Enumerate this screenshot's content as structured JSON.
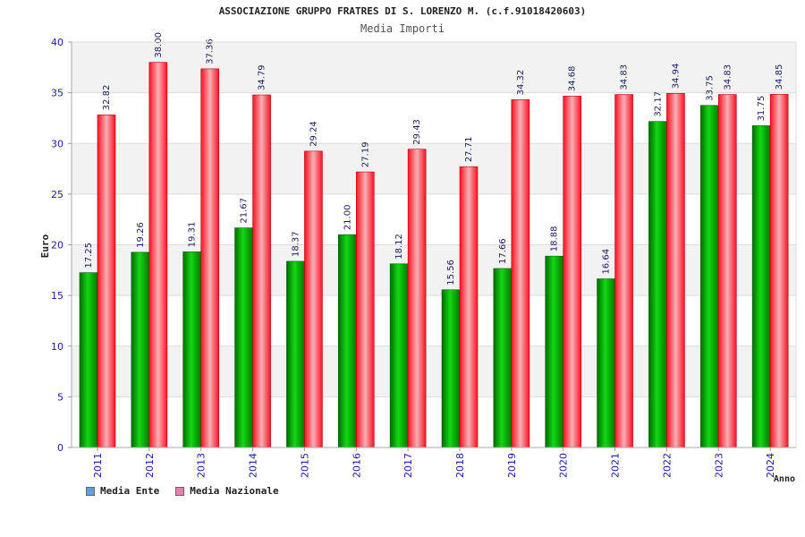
{
  "chart_data": {
    "type": "bar",
    "title": "ASSOCIAZIONE GRUPPO FRATRES DI S. LORENZO M. (c.f.91018420603)",
    "subtitle": "Media Importi",
    "xlabel": "Anno",
    "ylabel": "Euro",
    "ylim": [
      0,
      40
    ],
    "yticks": [
      0,
      5,
      10,
      15,
      20,
      25,
      30,
      35,
      40
    ],
    "categories": [
      "2011",
      "2012",
      "2013",
      "2014",
      "2015",
      "2016",
      "2017",
      "2018",
      "2019",
      "2020",
      "2021",
      "2022",
      "2023",
      "2024"
    ],
    "series": [
      {
        "name": "Media Ente",
        "color": "#00b000",
        "legend_color": "#5aa0e6",
        "values": [
          17.25,
          19.26,
          19.31,
          21.67,
          18.37,
          21.0,
          18.12,
          15.56,
          17.66,
          18.88,
          16.64,
          32.17,
          33.75,
          31.75
        ],
        "labels": [
          "17.25",
          "19.26",
          "19.31",
          "21.67",
          "18.37",
          "21.00",
          "18.12",
          "15.56",
          "17.66",
          "18.88",
          "16.64",
          "32.17",
          "33.75",
          "31.75"
        ]
      },
      {
        "name": "Media Nazionale",
        "color": "#ee2030",
        "legend_color": "#e080b0",
        "values": [
          32.82,
          38.0,
          37.36,
          34.79,
          29.24,
          27.19,
          29.43,
          27.71,
          34.32,
          34.68,
          34.83,
          34.94,
          34.83,
          34.85
        ],
        "labels": [
          "32.82",
          "38.00",
          "37.36",
          "34.79",
          "29.24",
          "27.19",
          "29.43",
          "27.71",
          "34.32",
          "34.68",
          "34.83",
          "34.94",
          "34.83",
          "34.85"
        ]
      }
    ],
    "grid": true,
    "legend_position": "bottom-left"
  }
}
